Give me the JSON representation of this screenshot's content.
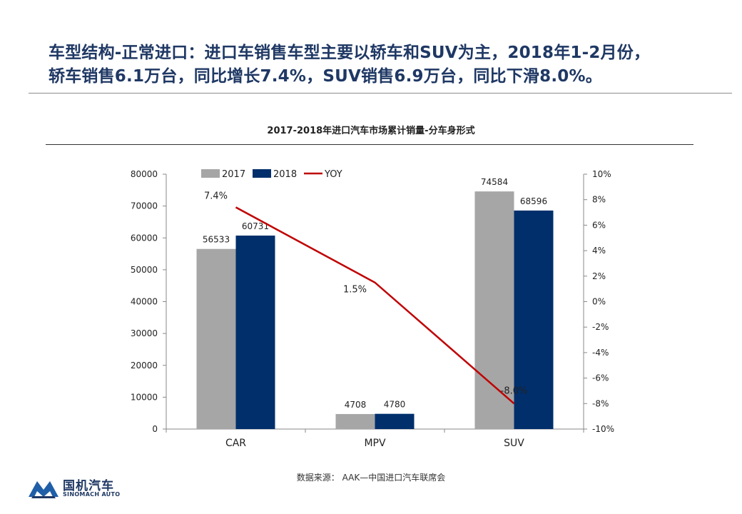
{
  "headline": {
    "line1": "车型结构-正常进口：进口车销售车型主要以轿车和SUV为主，2018年1-2月份，",
    "line2": "轿车销售6.1万台，同比增长7.4%，SUV销售6.9万台，同比下滑8.0%。"
  },
  "source": "数据来源： AAK—中国进口汽车联席会",
  "logo": {
    "cn": "国机汽车",
    "en": "SINOMACH AUTO"
  },
  "colors": {
    "headline": "#1f3864",
    "series_2017": "#a6a6a6",
    "series_2018": "#002f6c",
    "yoy": "#c00000"
  },
  "chart_data": {
    "type": "bar",
    "title": "2017-2018年进口汽车市场累计销量-分车身形式",
    "categories": [
      "CAR",
      "MPV",
      "SUV"
    ],
    "series": [
      {
        "name": "2017",
        "values": [
          56533,
          4708,
          74584
        ],
        "labels": [
          "56533",
          "4708",
          "74584"
        ]
      },
      {
        "name": "2018",
        "values": [
          60731,
          4780,
          68596
        ],
        "labels": [
          "60731",
          "4780",
          "68596"
        ]
      }
    ],
    "line_series": {
      "name": "YOY",
      "axis": "right",
      "values": [
        7.4,
        1.5,
        -8.0
      ],
      "labels": [
        "7.4%",
        "1.5%",
        "-8.0%"
      ]
    },
    "y_left": {
      "lim": [
        0,
        80000
      ],
      "ticks": [
        "0",
        "10000",
        "20000",
        "30000",
        "40000",
        "50000",
        "60000",
        "70000",
        "80000"
      ]
    },
    "y_right": {
      "lim": [
        -10,
        10
      ],
      "ticks": [
        "-10%",
        "-8%",
        "-6%",
        "-4%",
        "-2%",
        "0%",
        "2%",
        "4%",
        "6%",
        "8%",
        "10%"
      ]
    },
    "legend_position": "top",
    "grid": false
  }
}
